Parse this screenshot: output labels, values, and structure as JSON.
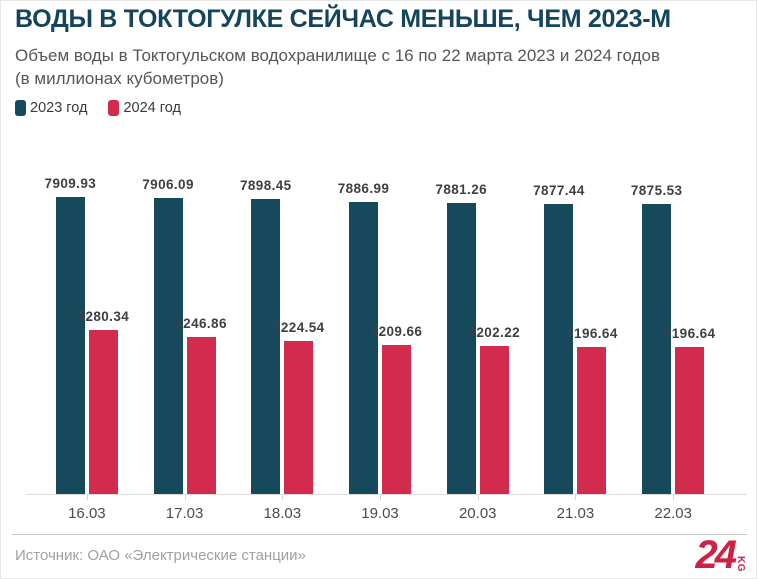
{
  "chart_data": {
    "type": "bar",
    "title": "ВОДЫ В ТОКТОГУЛКЕ СЕЙЧАС МЕНЬШЕ, ЧЕМ 2023-М",
    "subtitle_line1": "Объем воды в Токтогульском водохранилище с 16 по 22 марта 2023 и 2024 годов",
    "subtitle_line2": "(в миллионах кубометров)",
    "categories": [
      "16.03",
      "17.03",
      "18.03",
      "19.03",
      "20.03",
      "21.03",
      "22.03"
    ],
    "series": [
      {
        "name": "2023 год",
        "color": "#17495C",
        "values": [
          7909.93,
          7906.09,
          7898.45,
          7886.99,
          7881.26,
          7877.44,
          7875.53
        ]
      },
      {
        "name": "2024 год",
        "color": "#D32B4D",
        "values": [
          7280.34,
          7246.86,
          7224.54,
          7209.66,
          7202.22,
          7196.64,
          7196.64
        ]
      }
    ],
    "xlabel": "",
    "ylabel": "",
    "ylim": [
      6500,
      8128
    ],
    "grid": false,
    "legend_position": "top-left",
    "value_labels": true
  },
  "footer": {
    "source": "Источник: ОАО «Электрические станции»",
    "logo_text": "24",
    "logo_suffix": "KG"
  },
  "colors": {
    "title": "#14455C",
    "bar_2023": "#17495C",
    "bar_2024": "#D32B4D",
    "logo": "#CE2143"
  }
}
